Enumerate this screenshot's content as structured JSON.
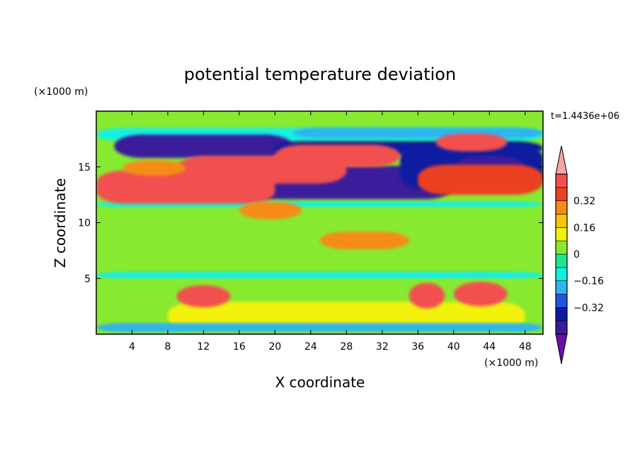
{
  "chart_data": {
    "type": "heatmap",
    "title": "potential temperature deviation",
    "xlabel": "X coordinate",
    "ylabel": "Z coordinate",
    "x_unit": "(×1000 m)",
    "y_unit": "(×1000 m)",
    "time_label": "t=1.4436e+06",
    "xlim": [
      0,
      50
    ],
    "ylim": [
      0,
      20
    ],
    "xticks": [
      4,
      8,
      12,
      16,
      20,
      24,
      28,
      32,
      36,
      40,
      44,
      48
    ],
    "yticks": [
      5,
      10,
      15
    ],
    "colorbar": {
      "min": -0.48,
      "max": 0.48,
      "step": 0.08,
      "tick_values": [
        0.32,
        0.16,
        0,
        -0.16,
        -0.32
      ],
      "tick_labels": [
        "0.32",
        "0.16",
        "0",
        "−0.16",
        "−0.32"
      ],
      "extend": "both",
      "colors": [
        "#6a0fa8",
        "#3a1a9a",
        "#0c1aa0",
        "#1f55e6",
        "#2fb4ee",
        "#12f0e3",
        "#20e68a",
        "#88ea30",
        "#f2f20e",
        "#f6c40a",
        "#f58c14",
        "#ec4020",
        "#f25050",
        "#f4a6a6"
      ]
    },
    "features": [
      {
        "x": 0,
        "y": 5,
        "w": 50,
        "h": 0.6,
        "value": -0.1
      },
      {
        "x": 0,
        "y": 11.4,
        "w": 50,
        "h": 0.5,
        "value": -0.15
      },
      {
        "x": 0,
        "y": 17.3,
        "w": 50,
        "h": 1.2,
        "value": -0.12
      },
      {
        "x": 22,
        "y": 17.6,
        "w": 28,
        "h": 0.9,
        "value": -0.2
      },
      {
        "x": 2,
        "y": 15.8,
        "w": 20,
        "h": 2.1,
        "value": -0.4
      },
      {
        "x": 20,
        "y": 16.1,
        "w": 30,
        "h": 1.2,
        "value": -0.36
      },
      {
        "x": 15,
        "y": 12.1,
        "w": 25,
        "h": 3.0,
        "value": -0.4
      },
      {
        "x": 34,
        "y": 13.0,
        "w": 16,
        "h": 4.0,
        "value": -0.34
      },
      {
        "x": 40,
        "y": 14.0,
        "w": 8,
        "h": 2.0,
        "value": -0.44
      },
      {
        "x": 0,
        "y": 11.7,
        "w": 20,
        "h": 3.0,
        "value": 0.42
      },
      {
        "x": 9,
        "y": 13.5,
        "w": 19,
        "h": 2.5,
        "value": 0.4
      },
      {
        "x": 20,
        "y": 15.0,
        "w": 14,
        "h": 2.0,
        "value": 0.4
      },
      {
        "x": 36,
        "y": 12.5,
        "w": 14,
        "h": 2.7,
        "value": 0.36
      },
      {
        "x": 38,
        "y": 16.4,
        "w": 8,
        "h": 1.6,
        "value": 0.4
      },
      {
        "x": 3,
        "y": 14.2,
        "w": 7,
        "h": 1.4,
        "value": 0.24
      },
      {
        "x": 16,
        "y": 10.3,
        "w": 7,
        "h": 1.6,
        "value": 0.28
      },
      {
        "x": 25,
        "y": 7.6,
        "w": 10,
        "h": 1.6,
        "value": 0.3
      },
      {
        "x": 8,
        "y": 0.3,
        "w": 40,
        "h": 2.6,
        "value": 0.12
      },
      {
        "x": 0,
        "y": 0.2,
        "w": 50,
        "h": 0.8,
        "value": -0.18
      },
      {
        "x": 9,
        "y": 2.4,
        "w": 6,
        "h": 2.0,
        "value": 0.44
      },
      {
        "x": 35,
        "y": 2.3,
        "w": 4,
        "h": 2.3,
        "value": 0.44
      },
      {
        "x": 40,
        "y": 2.5,
        "w": 6,
        "h": 2.2,
        "value": 0.44
      }
    ]
  }
}
